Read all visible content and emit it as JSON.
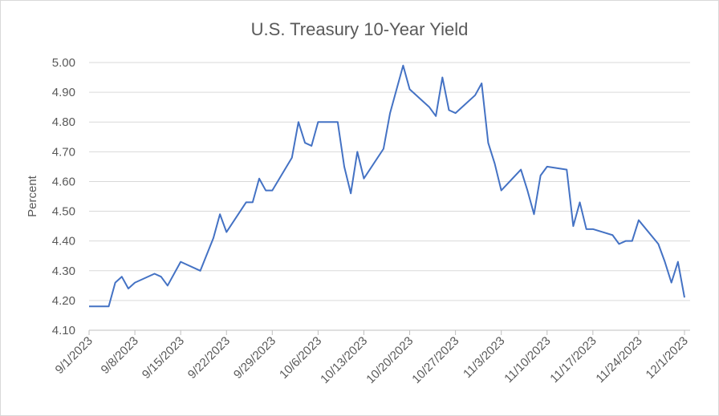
{
  "chart_data": {
    "type": "line",
    "title": "U.S. Treasury 10-Year Yield",
    "ylabel": "Percent",
    "x": [
      "9/1/2023",
      "9/4/2023",
      "9/5/2023",
      "9/6/2023",
      "9/7/2023",
      "9/8/2023",
      "9/11/2023",
      "9/12/2023",
      "9/13/2023",
      "9/15/2023",
      "9/18/2023",
      "9/20/2023",
      "9/21/2023",
      "9/22/2023",
      "9/25/2023",
      "9/26/2023",
      "9/27/2023",
      "9/28/2023",
      "9/29/2023",
      "10/2/2023",
      "10/3/2023",
      "10/4/2023",
      "10/5/2023",
      "10/6/2023",
      "10/9/2023",
      "10/10/2023",
      "10/11/2023",
      "10/12/2023",
      "10/13/2023",
      "10/16/2023",
      "10/17/2023",
      "10/18/2023",
      "10/19/2023",
      "10/20/2023",
      "10/23/2023",
      "10/24/2023",
      "10/25/2023",
      "10/26/2023",
      "10/27/2023",
      "10/30/2023",
      "10/31/2023",
      "11/1/2023",
      "11/2/2023",
      "11/3/2023",
      "11/6/2023",
      "11/7/2023",
      "11/8/2023",
      "11/9/2023",
      "11/10/2023",
      "11/13/2023",
      "11/14/2023",
      "11/15/2023",
      "11/16/2023",
      "11/17/2023",
      "11/20/2023",
      "11/21/2023",
      "11/22/2023",
      "11/23/2023",
      "11/24/2023",
      "11/27/2023",
      "11/28/2023",
      "11/29/2023",
      "11/30/2023",
      "12/1/2023"
    ],
    "series": [
      {
        "name": "10-Year Yield",
        "color": "#4472c4",
        "values": [
          4.18,
          4.18,
          4.26,
          4.28,
          4.24,
          4.26,
          4.29,
          4.28,
          4.25,
          4.33,
          4.3,
          4.41,
          4.49,
          4.43,
          4.53,
          4.53,
          4.61,
          4.57,
          4.57,
          4.68,
          4.8,
          4.73,
          4.72,
          4.8,
          4.8,
          4.65,
          4.56,
          4.7,
          4.61,
          4.71,
          4.83,
          4.91,
          4.99,
          4.91,
          4.85,
          4.82,
          4.95,
          4.84,
          4.83,
          4.89,
          4.93,
          4.73,
          4.66,
          4.57,
          4.64,
          4.57,
          4.49,
          4.62,
          4.65,
          4.64,
          4.45,
          4.53,
          4.44,
          4.44,
          4.42,
          4.39,
          4.4,
          4.4,
          4.47,
          4.39,
          4.33,
          4.26,
          4.33,
          4.21
        ]
      }
    ],
    "xlim": [
      "9/1/2023",
      "12/1/2023"
    ],
    "xticks": [
      "9/1/2023",
      "9/8/2023",
      "9/15/2023",
      "9/22/2023",
      "9/29/2023",
      "10/6/2023",
      "10/13/2023",
      "10/20/2023",
      "10/27/2023",
      "11/3/2023",
      "11/10/2023",
      "11/17/2023",
      "11/24/2023",
      "12/1/2023"
    ],
    "ylim": [
      4.1,
      5.0
    ],
    "yticks": [
      {
        "value": 4.1,
        "label": "4.10"
      },
      {
        "value": 4.2,
        "label": "4.20"
      },
      {
        "value": 4.3,
        "label": "4.30"
      },
      {
        "value": 4.4,
        "label": "4.40"
      },
      {
        "value": 4.5,
        "label": "4.50"
      },
      {
        "value": 4.6,
        "label": "4.60"
      },
      {
        "value": 4.7,
        "label": "4.70"
      },
      {
        "value": 4.8,
        "label": "4.80"
      },
      {
        "value": 4.9,
        "label": "4.90"
      },
      {
        "value": 5.0,
        "label": "5.00"
      }
    ],
    "grid": true
  }
}
